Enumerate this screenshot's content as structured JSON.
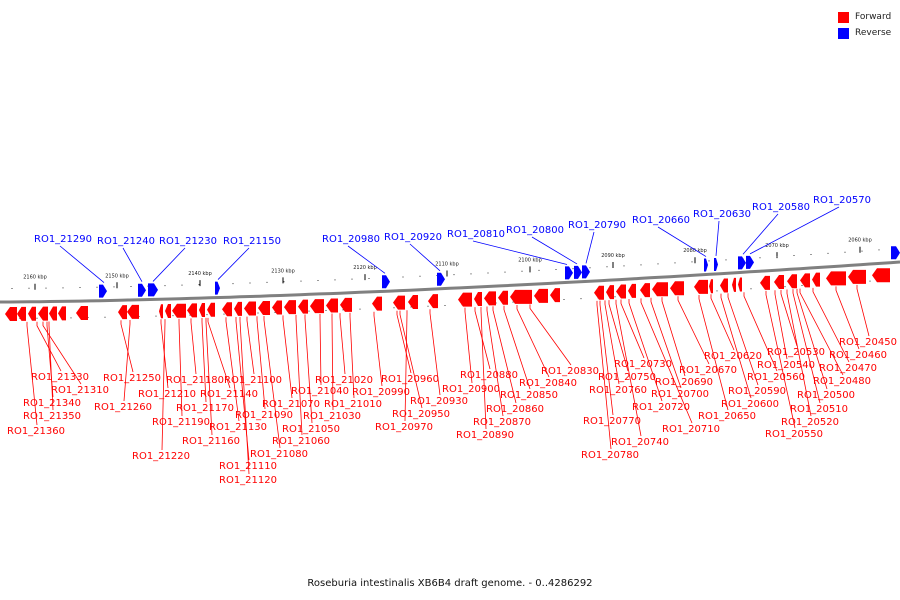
{
  "legend": [
    {
      "label": "Forward",
      "color": "#ff0000"
    },
    {
      "label": "Reverse",
      "color": "#0000ff"
    }
  ],
  "caption": "Roseburia intestinalis XB6B4 draft genome. - 0..4286292",
  "colors": {
    "forward": "#ff0000",
    "reverse": "#0000ff",
    "backbone": "#808080"
  },
  "scale_ticks": [
    "2160 kbp",
    "2150 kbp",
    "2140 kbp",
    "2130 kbp",
    "2120 kbp",
    "2110 kbp",
    "2100 kbp",
    "2090 kbp",
    "2080 kbp",
    "2070 kbp",
    "2060 kbp"
  ],
  "reverse_labels": [
    "RO1_21290",
    "RO1_21240",
    "RO1_21230",
    "RO1_21150",
    "RO1_20980",
    "RO1_20920",
    "RO1_20810",
    "RO1_20800",
    "RO1_20790",
    "RO1_20660",
    "RO1_20630",
    "RO1_20580",
    "RO1_20570"
  ],
  "forward_labels": [
    "RO1_21330",
    "RO1_21310",
    "RO1_21340",
    "RO1_21350",
    "RO1_21360",
    "RO1_21250",
    "RO1_21260",
    "RO1_21210",
    "RO1_21220",
    "RO1_21190",
    "RO1_21180",
    "RO1_21170",
    "RO1_21160",
    "RO1_21140",
    "RO1_21130",
    "RO1_21110",
    "RO1_21120",
    "RO1_21100",
    "RO1_21090",
    "RO1_21080",
    "RO1_21070",
    "RO1_21060",
    "RO1_21050",
    "RO1_21040",
    "RO1_21030",
    "RO1_21020",
    "RO1_21010",
    "RO1_20990",
    "RO1_20960",
    "RO1_20950",
    "RO1_20970",
    "RO1_20930",
    "RO1_20900",
    "RO1_20880",
    "RO1_20890",
    "RO1_20870",
    "RO1_20860",
    "RO1_20850",
    "RO1_20840",
    "RO1_20830",
    "RO1_20780",
    "RO1_20770",
    "RO1_20760",
    "RO1_20750",
    "RO1_20740",
    "RO1_20730",
    "RO1_20720",
    "RO1_20710",
    "RO1_20700",
    "RO1_20690",
    "RO1_20670",
    "RO1_20650",
    "RO1_20620",
    "RO1_20600",
    "RO1_20590",
    "RO1_20560",
    "RO1_20550",
    "RO1_20540",
    "RO1_20530",
    "RO1_20520",
    "RO1_20510",
    "RO1_20500",
    "RO1_20480",
    "RO1_20470",
    "RO1_20460",
    "RO1_20450"
  ]
}
